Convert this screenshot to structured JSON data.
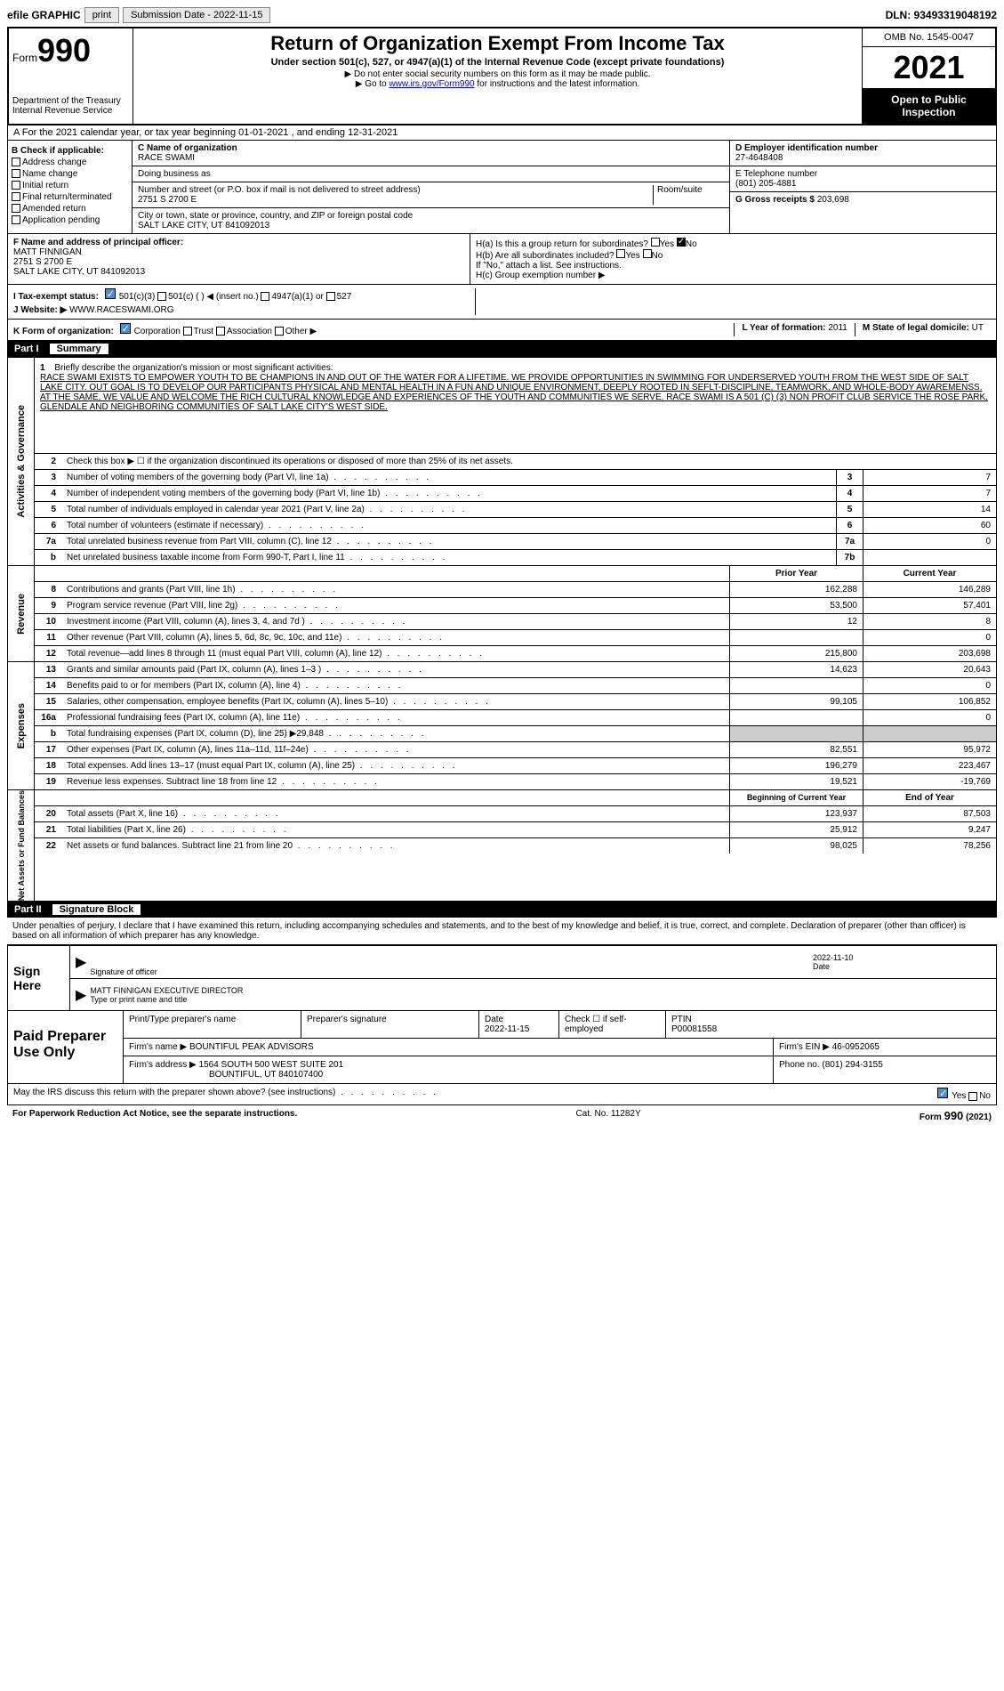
{
  "topbar": {
    "efile": "efile GRAPHIC",
    "print": "print",
    "submission_label": "Submission Date - 2022-11-15",
    "dln": "DLN: 93493319048192"
  },
  "header": {
    "form_prefix": "Form",
    "form_number": "990",
    "dept": "Department of the Treasury Internal Revenue Service",
    "title": "Return of Organization Exempt From Income Tax",
    "subtitle": "Under section 501(c), 527, or 4947(a)(1) of the Internal Revenue Code (except private foundations)",
    "instruction1": "▶ Do not enter social security numbers on this form as it may be made public.",
    "instruction2_prefix": "▶ Go to ",
    "instruction2_link": "www.irs.gov/Form990",
    "instruction2_suffix": " for instructions and the latest information.",
    "omb": "OMB No. 1545-0047",
    "year": "2021",
    "inspection": "Open to Public Inspection"
  },
  "section_a": "A For the 2021 calendar year, or tax year beginning 01-01-2021   , and ending 12-31-2021",
  "section_b": {
    "title": "B Check if applicable:",
    "items": [
      "Address change",
      "Name change",
      "Initial return",
      "Final return/terminated",
      "Amended return",
      "Application pending"
    ]
  },
  "section_c": {
    "label": "C Name of organization",
    "name": "RACE SWAMI",
    "dba_label": "Doing business as",
    "address_label": "Number and street (or P.O. box if mail is not delivered to street address)",
    "room_label": "Room/suite",
    "address": "2751 S 2700 E",
    "city_label": "City or town, state or province, country, and ZIP or foreign postal code",
    "city": "SALT LAKE CITY, UT  841092013"
  },
  "section_d": {
    "label": "D Employer identification number",
    "value": "27-4648408"
  },
  "section_e": {
    "label": "E Telephone number",
    "value": "(801) 205-4881"
  },
  "section_g": {
    "label": "G Gross receipts $",
    "value": "203,698"
  },
  "section_f": {
    "label": "F  Name and address of principal officer:",
    "name": "MATT FINNIGAN",
    "addr1": "2751 S 2700 E",
    "addr2": "SALT LAKE CITY, UT  841092013"
  },
  "section_h": {
    "ha": "H(a)  Is this a group return for subordinates?",
    "hb": "H(b)  Are all subordinates included?",
    "hb_note": "If \"No,\" attach a list. See instructions.",
    "hc": "H(c)  Group exemption number ▶"
  },
  "section_i": {
    "label": "I  Tax-exempt status:",
    "opt1": "501(c)(3)",
    "opt2": "501(c) (   ) ◀ (insert no.)",
    "opt3": "4947(a)(1) or",
    "opt4": "527"
  },
  "section_j": {
    "label": "J   Website: ▶",
    "value": "WWW.RACESWAMI.ORG"
  },
  "section_k": {
    "label": "K Form of organization:",
    "opts": [
      "Corporation",
      "Trust",
      "Association",
      "Other ▶"
    ]
  },
  "section_l": {
    "label": "L Year of formation:",
    "value": "2011"
  },
  "section_m": {
    "label": "M State of legal domicile:",
    "value": "UT"
  },
  "part1": {
    "label": "Part I",
    "title": "Summary"
  },
  "activities_label": "Activities & Governance",
  "revenue_label": "Revenue",
  "expenses_label": "Expenses",
  "netassets_label": "Net Assets or Fund Balances",
  "line1": {
    "num": "1",
    "desc": "Briefly describe the organization's mission or most significant activities:",
    "text": "RACE SWAMI EXISTS TO EMPOWER YOUTH TO BE CHAMPIONS IN AND OUT OF THE WATER FOR A LIFETIME. WE PROVIDE OPPORTUNITIES IN SWIMMING FOR UNDERSERVED YOUTH FROM THE WEST SIDE OF SALT LAKE CITY. OUT GOAL IS TO DEVELOP OUR PARTICIPANTS PHYSICAL AND MENTAL HEALTH IN A FUN AND UNIQUE ENVIRONMENT, DEEPLY ROOTED IN SEFLT-DISCIPLINE, TEAMWORK, AND WHOLE-BODY AWAREMENSS. AT THE SAME, WE VALUE AND WELCOME THE RICH CULTURAL KNOWLEDGE AND EXPERIENCES OF THE YOUTH AND COMMUNITIES WE SERVE. RACE SWAMI IS A 501 (C) (3) NON PROFIT CLUB SERVICE THE ROSE PARK, GLENDALE AND NEIGHBORING COMMUNITIES OF SALT LAKE CITY'S WEST SIDE."
  },
  "line2": {
    "num": "2",
    "desc": "Check this box ▶ ☐ if the organization discontinued its operations or disposed of more than 25% of its net assets."
  },
  "lines_gov": [
    {
      "num": "3",
      "desc": "Number of voting members of the governing body (Part VI, line 1a)",
      "box": "3",
      "val": "7"
    },
    {
      "num": "4",
      "desc": "Number of independent voting members of the governing body (Part VI, line 1b)",
      "box": "4",
      "val": "7"
    },
    {
      "num": "5",
      "desc": "Total number of individuals employed in calendar year 2021 (Part V, line 2a)",
      "box": "5",
      "val": "14"
    },
    {
      "num": "6",
      "desc": "Total number of volunteers (estimate if necessary)",
      "box": "6",
      "val": "60"
    },
    {
      "num": "7a",
      "desc": "Total unrelated business revenue from Part VIII, column (C), line 12",
      "box": "7a",
      "val": "0"
    },
    {
      "num": "b",
      "desc": "Net unrelated business taxable income from Form 990-T, Part I, line 11",
      "box": "7b",
      "val": ""
    }
  ],
  "col_headers": {
    "prior": "Prior Year",
    "current": "Current Year"
  },
  "lines_rev": [
    {
      "num": "8",
      "desc": "Contributions and grants (Part VIII, line 1h)",
      "prior": "162,288",
      "current": "146,289"
    },
    {
      "num": "9",
      "desc": "Program service revenue (Part VIII, line 2g)",
      "prior": "53,500",
      "current": "57,401"
    },
    {
      "num": "10",
      "desc": "Investment income (Part VIII, column (A), lines 3, 4, and 7d )",
      "prior": "12",
      "current": "8"
    },
    {
      "num": "11",
      "desc": "Other revenue (Part VIII, column (A), lines 5, 6d, 8c, 9c, 10c, and 11e)",
      "prior": "",
      "current": "0"
    },
    {
      "num": "12",
      "desc": "Total revenue—add lines 8 through 11 (must equal Part VIII, column (A), line 12)",
      "prior": "215,800",
      "current": "203,698"
    }
  ],
  "lines_exp": [
    {
      "num": "13",
      "desc": "Grants and similar amounts paid (Part IX, column (A), lines 1–3 )",
      "prior": "14,623",
      "current": "20,643"
    },
    {
      "num": "14",
      "desc": "Benefits paid to or for members (Part IX, column (A), line 4)",
      "prior": "",
      "current": "0"
    },
    {
      "num": "15",
      "desc": "Salaries, other compensation, employee benefits (Part IX, column (A), lines 5–10)",
      "prior": "99,105",
      "current": "106,852"
    },
    {
      "num": "16a",
      "desc": "Professional fundraising fees (Part IX, column (A), line 11e)",
      "prior": "",
      "current": "0"
    },
    {
      "num": "b",
      "desc": "Total fundraising expenses (Part IX, column (D), line 25) ▶29,848",
      "prior": "SHADED",
      "current": "SHADED"
    },
    {
      "num": "17",
      "desc": "Other expenses (Part IX, column (A), lines 11a–11d, 11f–24e)",
      "prior": "82,551",
      "current": "95,972"
    },
    {
      "num": "18",
      "desc": "Total expenses. Add lines 13–17 (must equal Part IX, column (A), line 25)",
      "prior": "196,279",
      "current": "223,467"
    },
    {
      "num": "19",
      "desc": "Revenue less expenses. Subtract line 18 from line 12",
      "prior": "19,521",
      "current": "-19,769"
    }
  ],
  "col_headers2": {
    "begin": "Beginning of Current Year",
    "end": "End of Year"
  },
  "lines_net": [
    {
      "num": "20",
      "desc": "Total assets (Part X, line 16)",
      "prior": "123,937",
      "current": "87,503"
    },
    {
      "num": "21",
      "desc": "Total liabilities (Part X, line 26)",
      "prior": "25,912",
      "current": "9,247"
    },
    {
      "num": "22",
      "desc": "Net assets or fund balances. Subtract line 21 from line 20",
      "prior": "98,025",
      "current": "78,256"
    }
  ],
  "part2": {
    "label": "Part II",
    "title": "Signature Block"
  },
  "declaration": "Under penalties of perjury, I declare that I have examined this return, including accompanying schedules and statements, and to the best of my knowledge and belief, it is true, correct, and complete. Declaration of preparer (other than officer) is based on all information of which preparer has any knowledge.",
  "sign": {
    "label": "Sign Here",
    "sig_label": "Signature of officer",
    "date_label": "Date",
    "date": "2022-11-10",
    "name": "MATT FINNIGAN  EXECUTIVE DIRECTOR",
    "name_label": "Type or print name and title"
  },
  "paid": {
    "label": "Paid Preparer Use Only",
    "col1": "Print/Type preparer's name",
    "col2": "Preparer's signature",
    "col3_label": "Date",
    "col3": "2022-11-15",
    "col4": "Check ☐ if self-employed",
    "col5_label": "PTIN",
    "col5": "P00081558",
    "firm_name_label": "Firm's name      ▶",
    "firm_name": "BOUNTIFUL PEAK ADVISORS",
    "firm_ein_label": "Firm's EIN ▶",
    "firm_ein": "46-0952065",
    "firm_addr_label": "Firm's address ▶",
    "firm_addr1": "1564 SOUTH 500 WEST SUITE 201",
    "firm_addr2": "BOUNTIFUL, UT  840107400",
    "phone_label": "Phone no.",
    "phone": "(801) 294-3155"
  },
  "discuss": {
    "text": "May the IRS discuss this return with the preparer shown above? (see instructions)",
    "yes": "Yes",
    "no": "No"
  },
  "footer": {
    "paperwork": "For Paperwork Reduction Act Notice, see the separate instructions.",
    "cat": "Cat. No. 11282Y",
    "form": "Form 990 (2021)"
  },
  "colors": {
    "black": "#000000",
    "white": "#ffffff",
    "blue_check": "#4a90d9",
    "link": "#0000cc",
    "shaded": "#cccccc"
  }
}
